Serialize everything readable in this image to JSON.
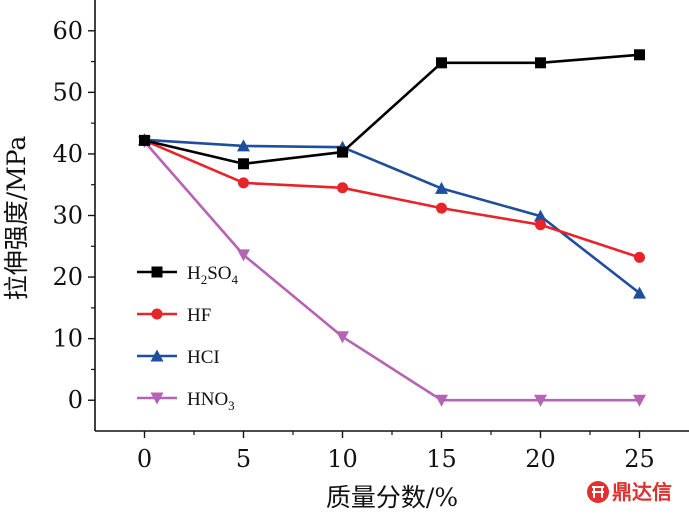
{
  "chart_data": {
    "type": "line",
    "xlabel": "质量分数/%",
    "ylabel": "拉伸强度/MPa",
    "x": [
      0,
      5,
      10,
      15,
      20,
      25
    ],
    "xlim": [
      -2.5,
      27.5
    ],
    "ylim": [
      -5,
      65
    ],
    "xticks": [
      0,
      5,
      10,
      15,
      20,
      25
    ],
    "yticks": [
      0,
      10,
      20,
      30,
      40,
      50,
      60
    ],
    "legend_position": "left",
    "grid": false,
    "series": [
      {
        "name": "H2SO4",
        "label_parts": [
          [
            "H",
            ""
          ],
          [
            "2",
            "sub"
          ],
          [
            "SO",
            ""
          ],
          [
            "4",
            "sub"
          ]
        ],
        "marker": "square",
        "color": "#000000",
        "values": [
          42.2,
          38.4,
          40.3,
          54.8,
          54.8,
          56.1
        ]
      },
      {
        "name": "HF",
        "label_parts": [
          [
            "HF",
            ""
          ]
        ],
        "marker": "circle",
        "color": "#e8232a",
        "values": [
          42.2,
          35.3,
          34.5,
          31.2,
          28.5,
          23.2
        ]
      },
      {
        "name": "HCI",
        "label_parts": [
          [
            "HCI",
            ""
          ]
        ],
        "marker": "triangle-up",
        "color": "#1f4e9c",
        "values": [
          42.3,
          41.3,
          41.1,
          34.4,
          29.9,
          17.4
        ]
      },
      {
        "name": "HNO3",
        "label_parts": [
          [
            "HNO",
            ""
          ],
          [
            "3",
            "sub"
          ]
        ],
        "marker": "triangle-down",
        "color": "#b564b4",
        "values": [
          42.0,
          23.6,
          10.3,
          0.0,
          0.0,
          0.0
        ]
      }
    ]
  },
  "watermark": {
    "text": "鼎达信",
    "color": "#e03030"
  }
}
